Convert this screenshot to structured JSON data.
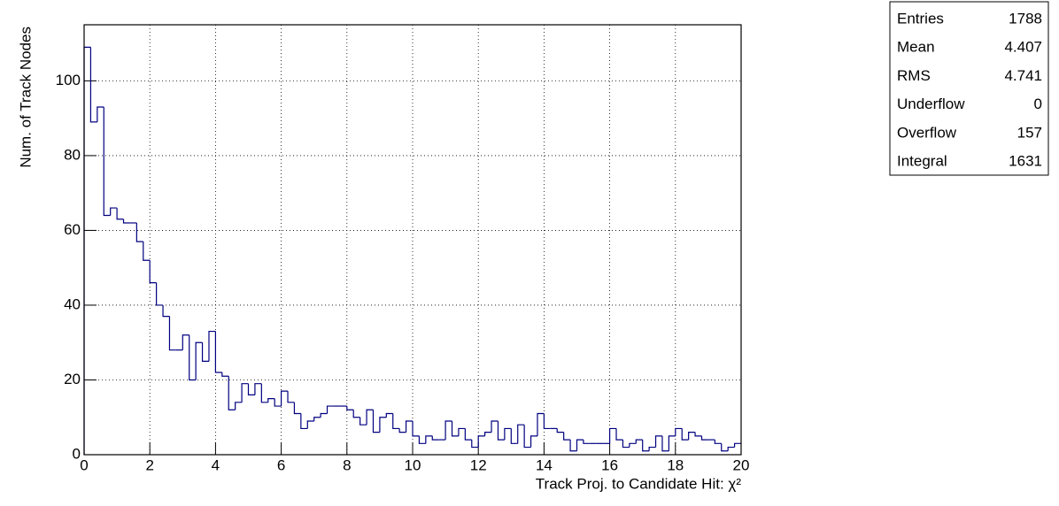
{
  "chart_data": {
    "type": "histogram",
    "x_label": "Track Proj. to Candidate Hit: χ²",
    "y_label": "Num. of Track Nodes",
    "color": "#000080",
    "bins": [
      0,
      0.2,
      0.4,
      0.6,
      0.8,
      1,
      1.2,
      1.4,
      1.6,
      1.8,
      2,
      2.2,
      2.4,
      2.6,
      2.8,
      3,
      3.2,
      3.4,
      3.6,
      3.8,
      4,
      4.2,
      4.4,
      4.6,
      4.8,
      5,
      5.2,
      5.4,
      5.6,
      5.8,
      6,
      6.2,
      6.4,
      6.6,
      6.8,
      7,
      7.2,
      7.4,
      7.6,
      7.8,
      8,
      8.2,
      8.4,
      8.6,
      8.8,
      9,
      9.2,
      9.4,
      9.6,
      9.8,
      10,
      10.2,
      10.4,
      10.6,
      10.8,
      11,
      11.2,
      11.4,
      11.6,
      11.8,
      12,
      12.2,
      12.4,
      12.6,
      12.8,
      13,
      13.2,
      13.4,
      13.6,
      13.8,
      14,
      14.2,
      14.4,
      14.6,
      14.8,
      15,
      15.2,
      15.4,
      15.6,
      15.8,
      16,
      16.2,
      16.4,
      16.6,
      16.8,
      17,
      17.2,
      17.4,
      17.6,
      17.8,
      18,
      18.2,
      18.4,
      18.6,
      18.8,
      19,
      19.2,
      19.4,
      19.6,
      19.8,
      20
    ],
    "values": [
      109,
      89,
      93,
      64,
      66,
      63,
      62,
      62,
      57,
      52,
      46,
      40,
      37,
      28,
      28,
      32,
      20,
      30,
      25,
      33,
      22,
      21,
      12,
      14,
      19,
      16,
      19,
      14,
      15,
      13,
      17,
      14,
      11,
      7,
      9,
      10,
      11,
      13,
      13,
      13,
      12,
      10,
      8,
      12,
      6,
      10,
      11,
      7,
      6,
      9,
      5,
      3,
      5,
      4,
      4,
      9,
      5,
      7,
      4,
      2,
      5,
      6,
      9,
      4,
      7,
      3,
      8,
      2,
      5,
      11,
      7,
      7,
      6,
      4,
      1,
      4,
      3,
      3,
      3,
      3,
      7,
      4,
      2,
      3,
      4,
      1,
      2,
      5,
      1,
      5,
      7,
      4,
      6,
      5,
      4,
      4,
      3,
      1,
      2,
      3
    ],
    "xlim": [
      0,
      20
    ],
    "xticks": [
      0,
      2,
      4,
      6,
      8,
      10,
      12,
      14,
      16,
      18,
      20
    ],
    "ylim": [
      0,
      115
    ],
    "yticks": [
      0,
      20,
      40,
      60,
      80,
      100
    ],
    "grid": true,
    "stats": [
      {
        "label": "Entries",
        "value": 1788
      },
      {
        "label": "Mean",
        "value": 4.407
      },
      {
        "label": "RMS",
        "value": 4.741
      },
      {
        "label": "Underflow",
        "value": 0
      },
      {
        "label": "Overflow",
        "value": 157
      },
      {
        "label": "Integral",
        "value": 1631
      }
    ]
  }
}
